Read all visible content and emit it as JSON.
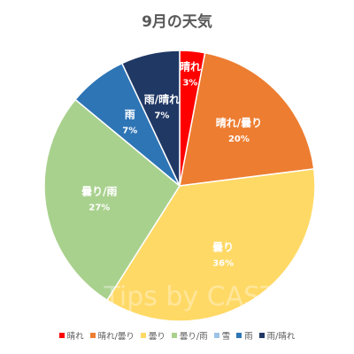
{
  "chart_data": {
    "type": "pie",
    "title": "9月の天気",
    "categories": [
      "晴れ",
      "晴れ/曇り",
      "曇り",
      "曇り/雨",
      "雪",
      "雨",
      "雨/晴れ"
    ],
    "values": [
      3,
      20,
      36,
      27,
      0,
      7,
      7
    ],
    "value_labels": [
      "3%",
      "20%",
      "36%",
      "27%",
      "",
      "7%",
      "7%"
    ],
    "colors": [
      "#ff0000",
      "#ed7d31",
      "#ffd966",
      "#a9d18e",
      "#9dc3e6",
      "#2e75b6",
      "#203864"
    ],
    "label_colors": [
      "#ffffff",
      "#ffffff",
      "#ffffff",
      "#ffffff",
      "#ffffff",
      "#ffffff",
      "#ffffff"
    ],
    "legend": "bottom",
    "watermark": "Tips by CAST"
  }
}
